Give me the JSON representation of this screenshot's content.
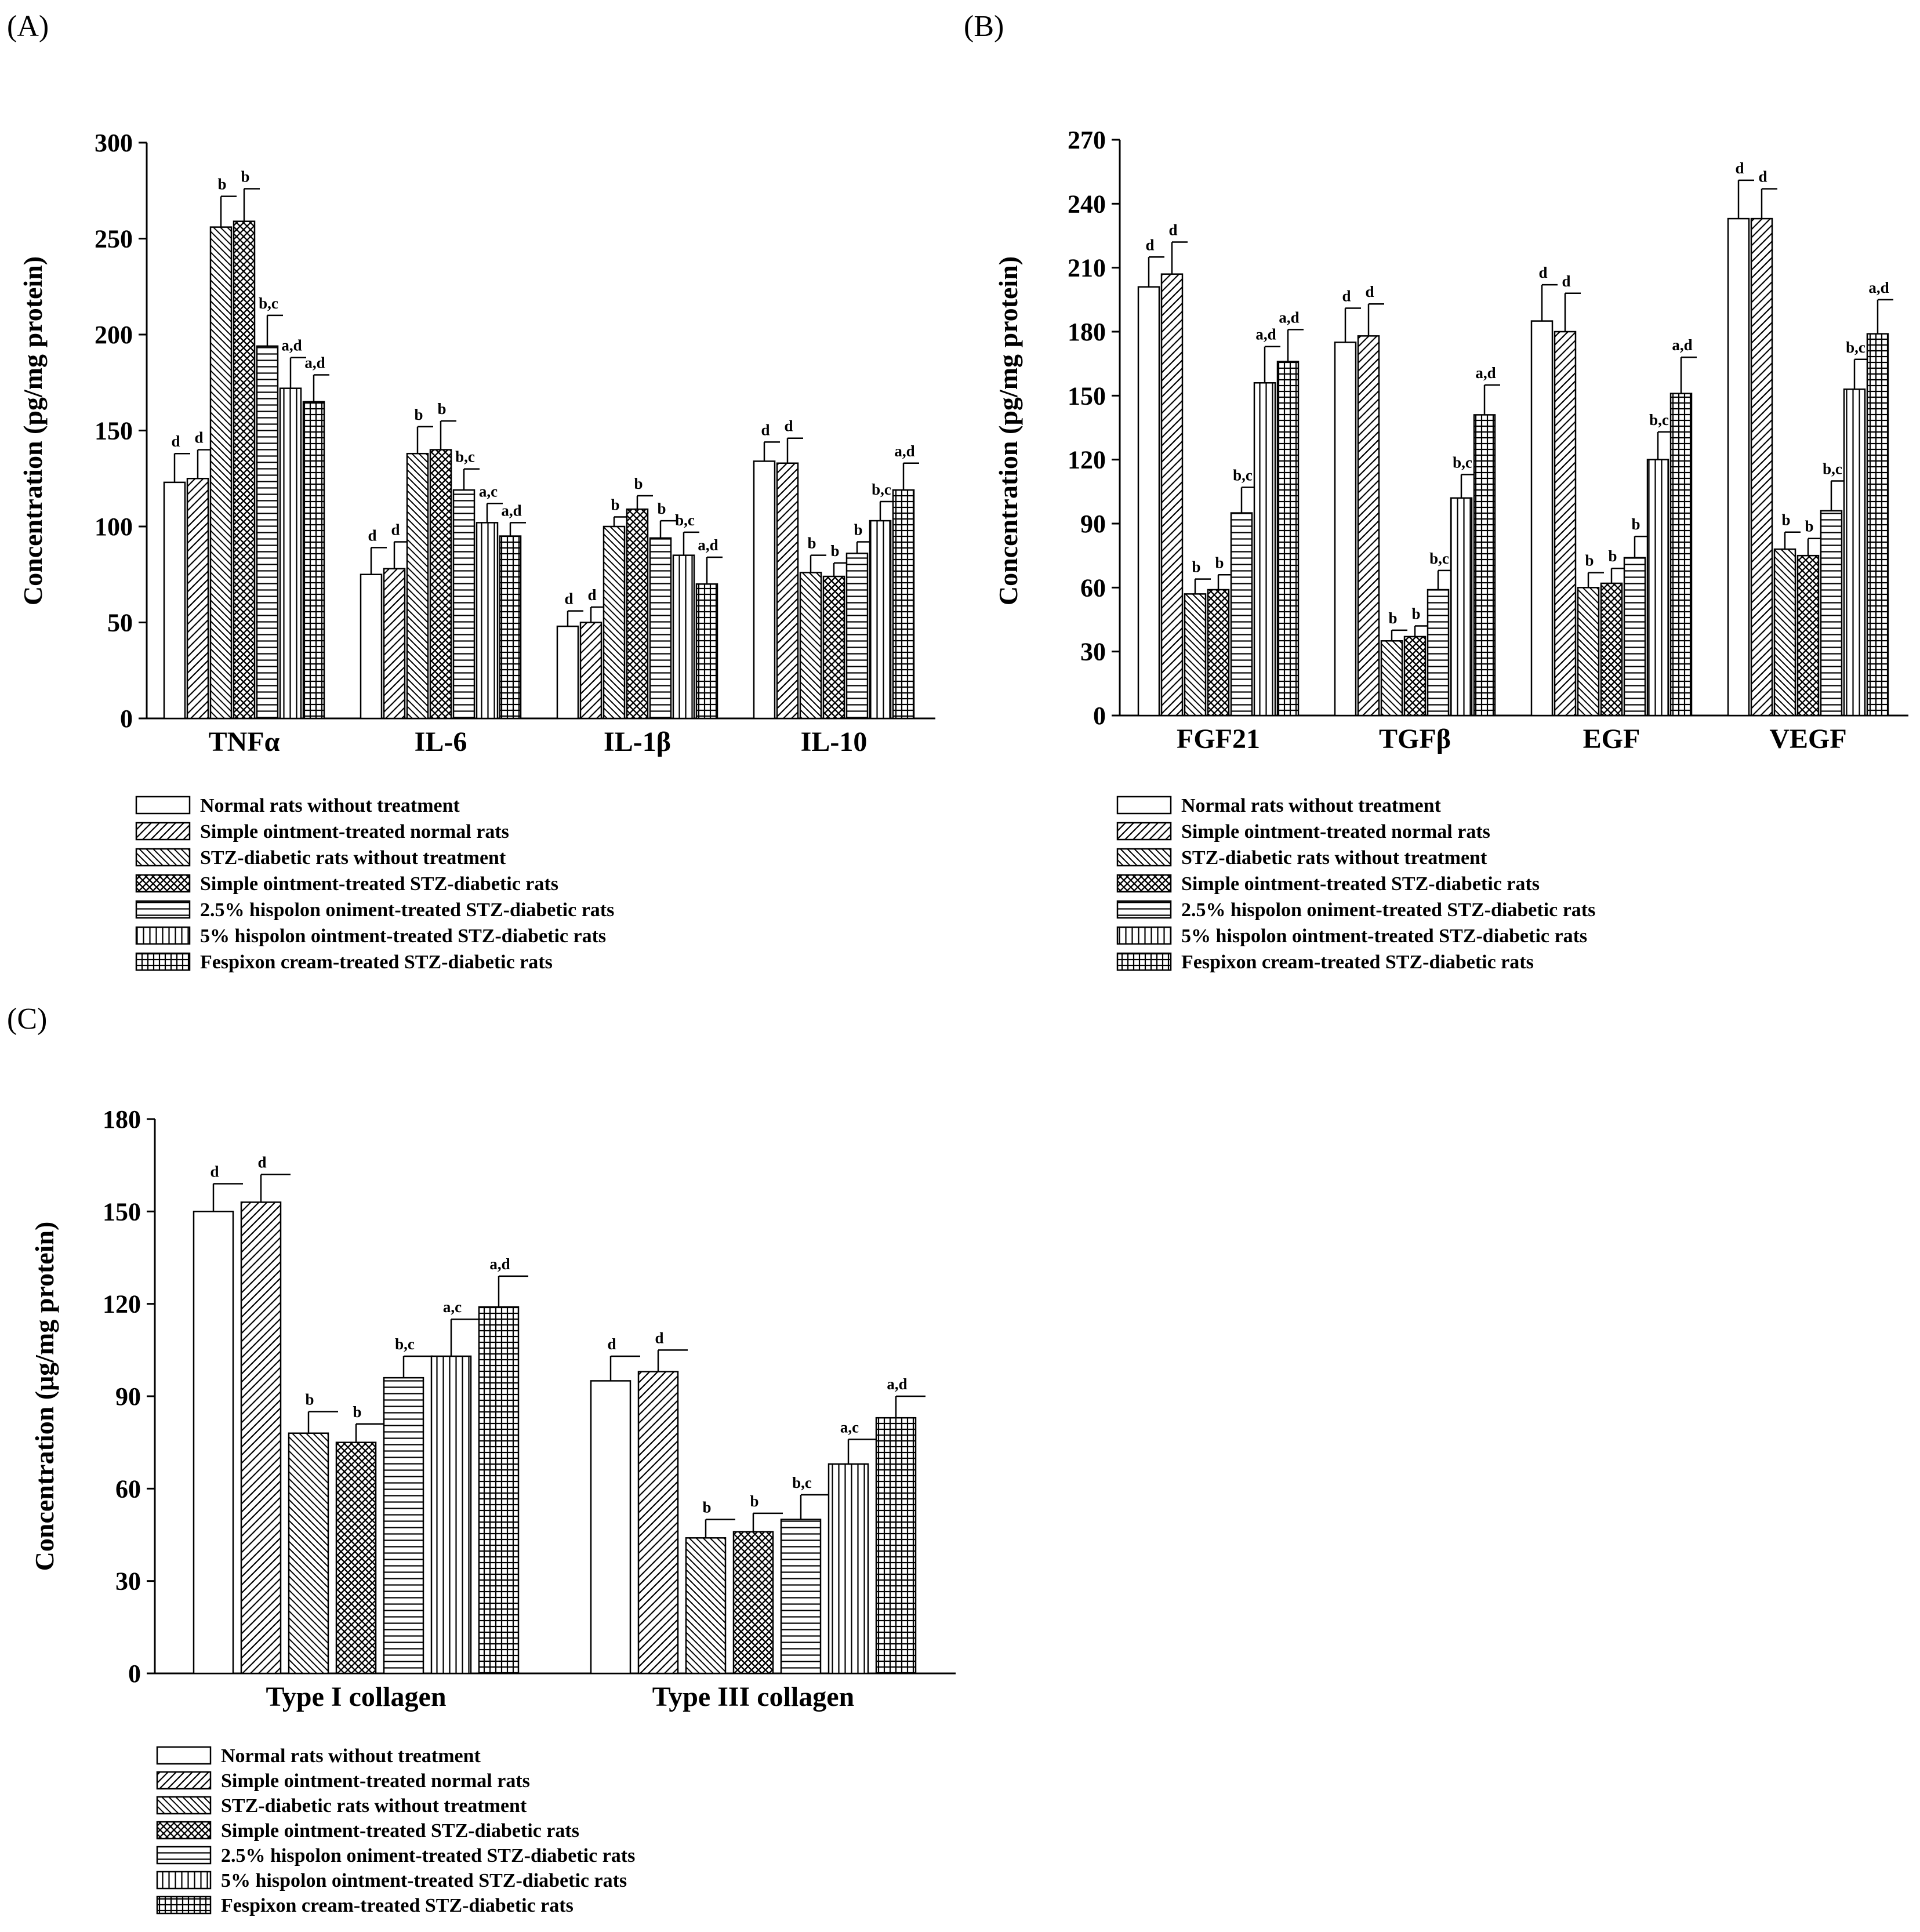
{
  "figure": {
    "legend_entries": [
      "Normal rats without treatment",
      "Simple ointment-treated normal rats",
      "STZ-diabetic rats without treatment",
      "Simple ointment-treated STZ-diabetic rats",
      "2.5% hispolon oniment-treated STZ-diabetic rats",
      "5% hispolon ointment-treated STZ-diabetic rats",
      "Fespixon cream-treated STZ-diabetic rats"
    ],
    "patterns": [
      "blank",
      "diag-right",
      "diag-left",
      "crosshatch",
      "horizontal",
      "vertical",
      "grid"
    ]
  },
  "chart_data": [
    {
      "panel": "(A)",
      "type": "bar",
      "ylabel": "Concentration (pg/mg protein)",
      "ylim": [
        0,
        300
      ],
      "yticks": [
        "0",
        "50",
        "100",
        "150",
        "200",
        "250",
        "300"
      ],
      "categories": [
        "TNFα",
        "IL-6",
        "IL-1β",
        "IL-10"
      ],
      "series": [
        {
          "name": "Normal rats without treatment",
          "values": [
            123,
            75,
            48,
            134
          ],
          "errors": [
            15,
            14,
            8,
            10
          ],
          "labels": [
            "d",
            "d",
            "d",
            "d"
          ]
        },
        {
          "name": "Simple ointment-treated normal rats",
          "values": [
            125,
            78,
            50,
            133
          ],
          "errors": [
            15,
            14,
            8,
            13
          ],
          "labels": [
            "d",
            "d",
            "d",
            "d"
          ]
        },
        {
          "name": "STZ-diabetic rats without treatment",
          "values": [
            256,
            138,
            100,
            76
          ],
          "errors": [
            16,
            14,
            5,
            9
          ],
          "labels": [
            "b",
            "b",
            "b",
            "b"
          ]
        },
        {
          "name": "Simple ointment-treated STZ-diabetic rats",
          "values": [
            259,
            140,
            109,
            74
          ],
          "errors": [
            17,
            15,
            7,
            7
          ],
          "labels": [
            "b",
            "b",
            "b",
            "b"
          ]
        },
        {
          "name": "2.5% hispolon oniment-treated STZ-diabetic rats",
          "values": [
            194,
            119,
            94,
            86
          ],
          "errors": [
            16,
            11,
            9,
            6
          ],
          "labels": [
            "b,c",
            "b,c",
            "b",
            "b"
          ]
        },
        {
          "name": "5% hispolon ointment-treated STZ-diabetic rats",
          "values": [
            172,
            102,
            85,
            103
          ],
          "errors": [
            16,
            10,
            12,
            10
          ],
          "labels": [
            "a,d",
            "a,c",
            "b,c",
            "b,c"
          ]
        },
        {
          "name": "Fespixon cream-treated STZ-diabetic rats",
          "values": [
            165,
            95,
            70,
            119
          ],
          "errors": [
            14,
            7,
            14,
            14
          ],
          "labels": [
            "a,d",
            "a,d",
            "a,d",
            "a,d"
          ]
        }
      ]
    },
    {
      "panel": "(B)",
      "type": "bar",
      "ylabel": "Concentration (pg/mg protein)",
      "ylim": [
        0,
        270
      ],
      "yticks": [
        "0",
        "30",
        "60",
        "90",
        "120",
        "150",
        "180",
        "210",
        "240",
        "270"
      ],
      "categories": [
        "FGF21",
        "TGFβ",
        "EGF",
        "VEGF"
      ],
      "series": [
        {
          "name": "Normal rats without treatment",
          "values": [
            201,
            175,
            185,
            233
          ],
          "errors": [
            14,
            16,
            17,
            18
          ],
          "labels": [
            "d",
            "d",
            "d",
            "d"
          ]
        },
        {
          "name": "Simple ointment-treated normal rats",
          "values": [
            207,
            178,
            180,
            233
          ],
          "errors": [
            15,
            15,
            18,
            14
          ],
          "labels": [
            "d",
            "d",
            "d",
            "d"
          ]
        },
        {
          "name": "STZ-diabetic rats without treatment",
          "values": [
            57,
            35,
            60,
            78
          ],
          "errors": [
            7,
            5,
            7,
            8
          ],
          "labels": [
            "b",
            "b",
            "b",
            "b"
          ]
        },
        {
          "name": "Simple ointment-treated STZ-diabetic rats",
          "values": [
            59,
            37,
            62,
            75
          ],
          "errors": [
            7,
            5,
            7,
            8
          ],
          "labels": [
            "b",
            "b",
            "b",
            "b"
          ]
        },
        {
          "name": "2.5% hispolon oniment-treated STZ-diabetic rats",
          "values": [
            95,
            59,
            74,
            96
          ],
          "errors": [
            12,
            9,
            10,
            14
          ],
          "labels": [
            "b,c",
            "b,c",
            "b",
            "b,c"
          ]
        },
        {
          "name": "5% hispolon ointment-treated STZ-diabetic rats",
          "values": [
            156,
            102,
            120,
            153
          ],
          "errors": [
            17,
            11,
            13,
            14
          ],
          "labels": [
            "a,d",
            "b,c",
            "b,c",
            "b,c"
          ]
        },
        {
          "name": "Fespixon cream-treated STZ-diabetic rats",
          "values": [
            166,
            141,
            151,
            179
          ],
          "errors": [
            15,
            14,
            17,
            16
          ],
          "labels": [
            "a,d",
            "a,d",
            "a,d",
            "a,d"
          ]
        }
      ]
    },
    {
      "panel": "(C)",
      "type": "bar",
      "ylabel": "Concentration (μg/mg protein)",
      "ylim": [
        0,
        180
      ],
      "yticks": [
        "0",
        "30",
        "60",
        "90",
        "120",
        "150",
        "180"
      ],
      "categories": [
        "Type I collagen",
        "Type III collagen"
      ],
      "series": [
        {
          "name": "Normal rats without treatment",
          "values": [
            150,
            95
          ],
          "errors": [
            9,
            8
          ],
          "labels": [
            "d",
            "d"
          ]
        },
        {
          "name": "Simple ointment-treated normal rats",
          "values": [
            153,
            98
          ],
          "errors": [
            9,
            7
          ],
          "labels": [
            "d",
            "d"
          ]
        },
        {
          "name": "STZ-diabetic rats without treatment",
          "values": [
            78,
            44
          ],
          "errors": [
            7,
            6
          ],
          "labels": [
            "b",
            "b"
          ]
        },
        {
          "name": "Simple ointment-treated STZ-diabetic rats",
          "values": [
            75,
            46
          ],
          "errors": [
            6,
            6
          ],
          "labels": [
            "b",
            "b"
          ]
        },
        {
          "name": "2.5% hispolon oniment-treated STZ-diabetic rats",
          "values": [
            96,
            50
          ],
          "errors": [
            7,
            8
          ],
          "labels": [
            "b,c",
            "b,c"
          ]
        },
        {
          "name": "5% hispolon ointment-treated STZ-diabetic rats",
          "values": [
            103,
            68
          ],
          "errors": [
            12,
            8
          ],
          "labels": [
            "a,c",
            "a,c"
          ]
        },
        {
          "name": "Fespixon cream-treated STZ-diabetic rats",
          "values": [
            119,
            83
          ],
          "errors": [
            10,
            7
          ],
          "labels": [
            "a,d",
            "a,d"
          ]
        }
      ]
    }
  ]
}
